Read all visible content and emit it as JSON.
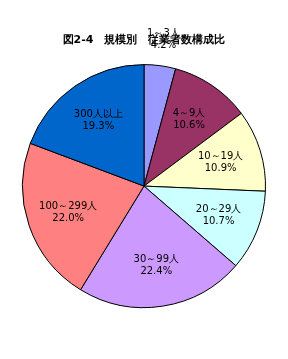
{
  "chart_data": {
    "type": "pie",
    "title": "図2-4　規模別　従業者数構成比",
    "categories": [
      "1～3人",
      "4～9人",
      "10～19人",
      "20～29人",
      "30～99人",
      "100～299人",
      "300人以上"
    ],
    "values": [
      4.2,
      10.6,
      10.9,
      10.7,
      22.4,
      22.0,
      19.3
    ],
    "value_labels": [
      "4.2%",
      "10.6%",
      "10.9%",
      "10.7%",
      "22.4%",
      "22.0%",
      "19.3%"
    ],
    "colors": [
      "#9999ff",
      "#993366",
      "#ffffcc",
      "#ccffff",
      "#cc99ff",
      "#ff8080",
      "#0066cc"
    ],
    "data_labels": true
  }
}
